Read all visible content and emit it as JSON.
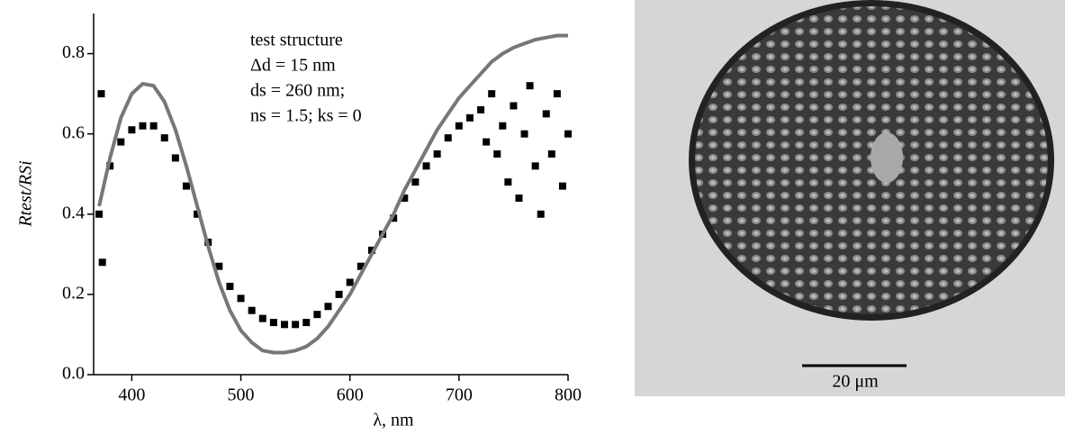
{
  "chart_data": {
    "type": "scatter",
    "x_label": "λ, nm",
    "y_label": "Rtest/RSi",
    "annotations": [
      "test structure",
      "Δd = 15 nm",
      "ds = 260 nm;",
      "ns = 1.5; ks = 0"
    ],
    "xlim": [
      365,
      800
    ],
    "xticks": [
      400,
      500,
      600,
      700,
      800
    ],
    "ylim": [
      0,
      0.9
    ],
    "yticks": [
      {
        "value": 0,
        "label": "0.0"
      },
      0.2,
      0.4,
      0.6,
      0.8
    ],
    "series": [
      {
        "type": "scatter",
        "color": "#000000",
        "x": [
          370,
          372,
          373,
          380,
          390,
          400,
          410,
          420,
          430,
          440,
          450,
          460,
          470,
          480,
          490,
          500,
          510,
          520,
          530,
          540,
          550,
          560,
          570,
          580,
          590,
          600,
          610,
          620,
          630,
          640,
          650,
          660,
          670,
          680,
          690,
          700,
          710,
          720,
          725,
          730,
          735,
          740,
          745,
          750,
          755,
          760,
          765,
          770,
          775,
          780,
          785,
          790,
          795,
          800
        ],
        "values": [
          0.4,
          0.7,
          0.28,
          0.52,
          0.58,
          0.61,
          0.62,
          0.62,
          0.59,
          0.54,
          0.47,
          0.4,
          0.33,
          0.27,
          0.22,
          0.19,
          0.16,
          0.14,
          0.13,
          0.125,
          0.125,
          0.13,
          0.15,
          0.17,
          0.2,
          0.23,
          0.27,
          0.31,
          0.35,
          0.39,
          0.44,
          0.48,
          0.52,
          0.55,
          0.59,
          0.62,
          0.64,
          0.66,
          0.58,
          0.7,
          0.55,
          0.62,
          0.48,
          0.67,
          0.44,
          0.6,
          0.72,
          0.52,
          0.4,
          0.65,
          0.55,
          0.7,
          0.47,
          0.6
        ]
      },
      {
        "type": "line",
        "color": "#777777",
        "x": [
          370,
          380,
          390,
          400,
          410,
          420,
          430,
          440,
          450,
          460,
          470,
          480,
          490,
          500,
          510,
          520,
          530,
          540,
          550,
          560,
          570,
          580,
          590,
          600,
          610,
          620,
          630,
          640,
          650,
          660,
          670,
          680,
          690,
          700,
          710,
          720,
          730,
          740,
          750,
          760,
          770,
          780,
          790,
          800
        ],
        "values": [
          0.42,
          0.54,
          0.64,
          0.7,
          0.725,
          0.72,
          0.68,
          0.61,
          0.52,
          0.42,
          0.32,
          0.23,
          0.16,
          0.11,
          0.08,
          0.06,
          0.055,
          0.055,
          0.06,
          0.07,
          0.09,
          0.12,
          0.16,
          0.2,
          0.25,
          0.3,
          0.35,
          0.4,
          0.46,
          0.51,
          0.56,
          0.61,
          0.65,
          0.69,
          0.72,
          0.75,
          0.78,
          0.8,
          0.815,
          0.825,
          0.835,
          0.84,
          0.845,
          0.845
        ]
      }
    ]
  },
  "image": {
    "scale_bar_label": "20 μm"
  }
}
